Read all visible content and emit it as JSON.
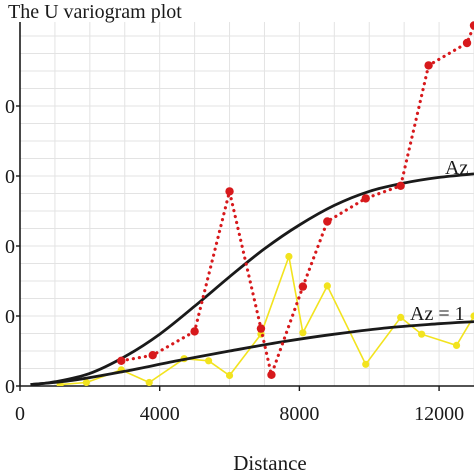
{
  "chart_data": {
    "type": "line",
    "title": "The U variogram plot",
    "xlabel": "Distance",
    "ylabel": "",
    "xlim": [
      0,
      13000
    ],
    "ylim": [
      0,
      52
    ],
    "x_ticks": [
      0,
      4000,
      8000,
      12000
    ],
    "x_tick_labels": [
      "0",
      "4000",
      "8000",
      "12000"
    ],
    "y_ticks": [
      0,
      10,
      20,
      30,
      40
    ],
    "y_tick_labels": [
      "0",
      "0",
      "0",
      "0",
      "0"
    ],
    "grid": true,
    "series": [
      {
        "name": "",
        "kind": "experimental",
        "color": "#d7191c",
        "style": "dotted",
        "x": [
          2900,
          3800,
          5000,
          6000,
          6900,
          7200,
          8100,
          8800,
          9900,
          10900,
          11700,
          12800,
          13000
        ],
        "y": [
          3.6,
          4.4,
          7.8,
          27.8,
          8.2,
          1.6,
          14.2,
          23.5,
          26.8,
          28.6,
          45.8,
          49,
          51.5
        ]
      },
      {
        "name": "",
        "kind": "experimental",
        "color": "#f2e31e",
        "style": "solid",
        "x": [
          1150,
          1900,
          2900,
          3700,
          4700,
          5400,
          6000,
          6900,
          7700,
          8100,
          8800,
          9900,
          10900,
          11500,
          12500,
          13000
        ],
        "y": [
          0.2,
          0.5,
          2.3,
          0.5,
          3.9,
          3.6,
          1.5,
          7.4,
          18.5,
          7.6,
          14.3,
          3.1,
          9.8,
          7.4,
          5.8,
          10
        ]
      },
      {
        "name": "Az",
        "kind": "model",
        "color": "#1a1a1a",
        "style": "solid",
        "x": [
          300,
          1000,
          2000,
          3000,
          4000,
          5000,
          6000,
          7000,
          8000,
          9000,
          10000,
          11000,
          12000,
          13000
        ],
        "y": [
          0.2,
          0.6,
          1.8,
          4.2,
          7.4,
          11.4,
          15.6,
          19.6,
          23.0,
          25.8,
          27.8,
          29.0,
          29.8,
          30.3
        ]
      },
      {
        "name": "Az = 1",
        "kind": "model",
        "color": "#1a1a1a",
        "style": "solid",
        "x": [
          300,
          1500,
          3000,
          4500,
          6000,
          7500,
          9000,
          10500,
          12000,
          13000
        ],
        "y": [
          0.2,
          0.8,
          2.1,
          3.6,
          5.0,
          6.3,
          7.4,
          8.3,
          8.9,
          9.2
        ]
      }
    ]
  },
  "page": {
    "title": "The U variogram plot",
    "xlabel": "Distance",
    "legend": {
      "az_upper": "Az",
      "az_lower": "Az = 1"
    }
  }
}
